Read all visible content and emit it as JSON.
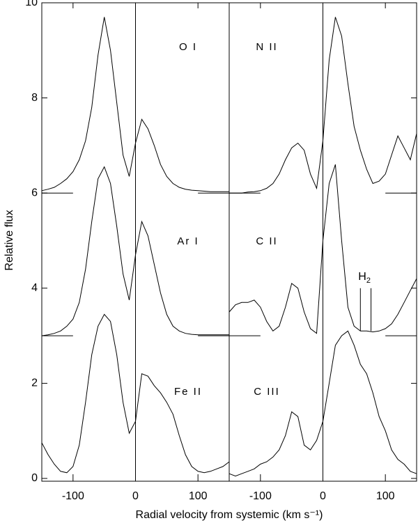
{
  "chart_data": [
    {
      "type": "line",
      "ylabel": "Relative flux",
      "xlabel": "Radial velocity from systemic (km s⁻¹)",
      "xlim": [
        -150,
        150
      ],
      "xticks": [
        -100,
        0,
        100
      ],
      "ylim": [
        0,
        10
      ],
      "yticks": [
        0,
        2,
        4,
        6,
        8,
        10
      ],
      "vlines": [
        0
      ],
      "continuum": {
        "levels": [
          6,
          3
        ],
        "spans": [
          [
            -150,
            -100
          ],
          [
            100,
            150
          ]
        ]
      },
      "x": [
        -150,
        -140,
        -130,
        -120,
        -110,
        -100,
        -90,
        -80,
        -70,
        -60,
        -50,
        -40,
        -30,
        -20,
        -10,
        0,
        10,
        20,
        30,
        40,
        50,
        60,
        70,
        80,
        90,
        100,
        110,
        120,
        130,
        140,
        150
      ],
      "series": [
        {
          "name": "O I",
          "color": "#000000",
          "values": [
            6.05,
            6.08,
            6.12,
            6.2,
            6.3,
            6.45,
            6.7,
            7.1,
            7.8,
            8.9,
            9.7,
            9.0,
            7.9,
            6.8,
            6.35,
            7.05,
            7.55,
            7.35,
            7.0,
            6.6,
            6.35,
            6.2,
            6.12,
            6.08,
            6.06,
            6.05,
            6.04,
            6.03,
            6.03,
            6.03,
            6.03
          ]
        },
        {
          "name": "Ar I",
          "color": "#000000",
          "values": [
            3.0,
            3.02,
            3.05,
            3.1,
            3.2,
            3.35,
            3.7,
            4.4,
            5.4,
            6.3,
            6.55,
            6.2,
            5.3,
            4.3,
            3.75,
            4.7,
            5.4,
            5.1,
            4.5,
            3.9,
            3.45,
            3.2,
            3.1,
            3.05,
            3.03,
            3.02,
            3.02,
            3.02,
            3.02,
            3.02,
            3.02
          ]
        },
        {
          "name": "Fe II",
          "color": "#000000",
          "values": [
            0.75,
            0.5,
            0.3,
            0.15,
            0.12,
            0.25,
            0.7,
            1.6,
            2.6,
            3.2,
            3.45,
            3.3,
            2.6,
            1.6,
            0.95,
            1.2,
            2.2,
            2.15,
            1.95,
            1.8,
            1.6,
            1.35,
            0.9,
            0.5,
            0.25,
            0.15,
            0.12,
            0.15,
            0.2,
            0.25,
            0.35
          ]
        }
      ]
    },
    {
      "type": "line",
      "xlim": [
        -150,
        150
      ],
      "xticks": [
        -100,
        0,
        100
      ],
      "ylim": [
        0,
        10
      ],
      "yticks": [
        0,
        2,
        4,
        6,
        8,
        10
      ],
      "vlines": [
        0
      ],
      "continuum": {
        "levels": [
          6,
          3
        ],
        "spans": [
          [
            -150,
            -100
          ],
          [
            100,
            150
          ]
        ]
      },
      "x": [
        -150,
        -140,
        -130,
        -120,
        -110,
        -100,
        -90,
        -80,
        -70,
        -60,
        -50,
        -40,
        -30,
        -20,
        -10,
        0,
        10,
        20,
        30,
        40,
        50,
        60,
        70,
        80,
        90,
        100,
        110,
        120,
        130,
        140,
        150
      ],
      "series": [
        {
          "name": "N II",
          "color": "#000000",
          "values": [
            6.0,
            6.0,
            6.0,
            6.02,
            6.03,
            6.05,
            6.1,
            6.2,
            6.4,
            6.7,
            6.95,
            7.05,
            6.9,
            6.4,
            6.1,
            7.1,
            8.8,
            9.7,
            9.3,
            8.3,
            7.4,
            6.9,
            6.5,
            6.2,
            6.25,
            6.4,
            6.8,
            7.2,
            6.95,
            6.7,
            7.25
          ]
        },
        {
          "name": "C II",
          "color": "#000000",
          "values": [
            3.5,
            3.65,
            3.7,
            3.7,
            3.75,
            3.6,
            3.3,
            3.1,
            3.2,
            3.6,
            4.1,
            4.0,
            3.5,
            3.15,
            3.05,
            5.0,
            6.2,
            6.6,
            5.0,
            3.6,
            3.2,
            3.1,
            3.1,
            3.08,
            3.1,
            3.15,
            3.25,
            3.45,
            3.7,
            3.95,
            4.2
          ]
        },
        {
          "name": "C III",
          "color": "#000000",
          "values": [
            0.1,
            0.05,
            0.1,
            0.15,
            0.2,
            0.3,
            0.35,
            0.45,
            0.6,
            0.9,
            1.4,
            1.3,
            0.7,
            0.6,
            0.8,
            1.2,
            2.0,
            2.8,
            3.0,
            3.1,
            2.8,
            2.4,
            2.2,
            1.8,
            1.3,
            1.0,
            0.6,
            0.4,
            0.3,
            0.15,
            0.1
          ]
        }
      ],
      "annotations": [
        {
          "text": "H",
          "subscript": "2",
          "x": [
            60,
            77
          ],
          "y": [
            3.1,
            4.0
          ]
        }
      ]
    }
  ]
}
